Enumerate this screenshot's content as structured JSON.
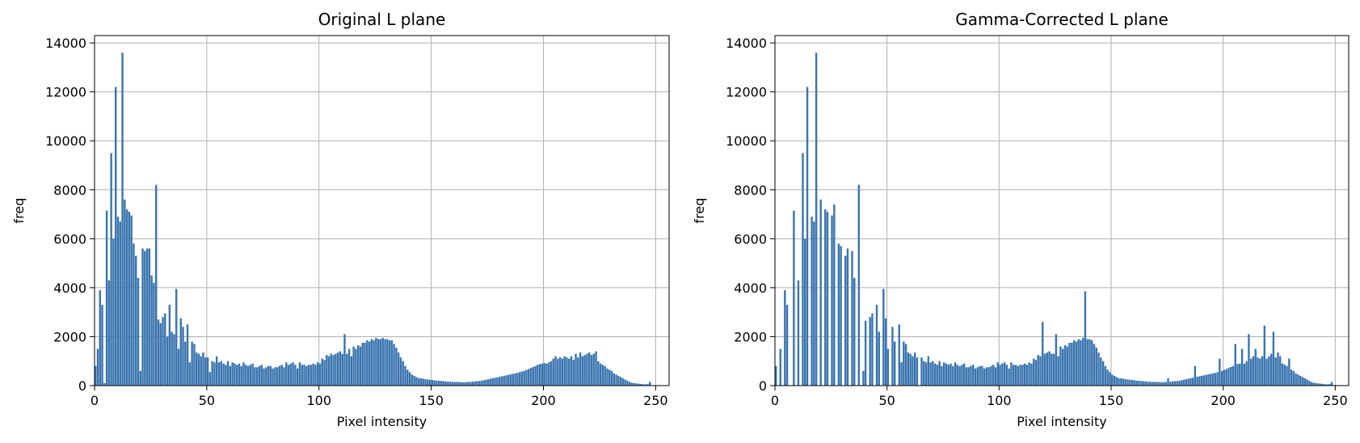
{
  "chart_data": [
    {
      "type": "bar",
      "title": "Original L plane",
      "xlabel": "Pixel intensity",
      "ylabel": "freq",
      "xlim": [
        0,
        256
      ],
      "ylim": [
        0,
        14300
      ],
      "xticks": [
        0,
        50,
        100,
        150,
        200,
        250
      ],
      "yticks": [
        0,
        2000,
        4000,
        6000,
        8000,
        10000,
        12000,
        14000
      ],
      "grid": true,
      "bar_color": "#3b75af",
      "x_start": 0,
      "bin_width": 1,
      "values": [
        800,
        1500,
        3900,
        3300,
        100,
        7150,
        4300,
        9500,
        6000,
        12200,
        6900,
        6700,
        13600,
        7600,
        7200,
        7100,
        6950,
        5800,
        5300,
        4400,
        600,
        5600,
        5500,
        5600,
        5600,
        4500,
        4200,
        8200,
        2700,
        2550,
        2800,
        2950,
        2000,
        3300,
        2200,
        2100,
        3950,
        1500,
        2750,
        2400,
        1800,
        2500,
        950,
        1800,
        1700,
        1350,
        1300,
        1200,
        1350,
        1150,
        1150,
        550,
        1000,
        950,
        1200,
        950,
        1000,
        900,
        850,
        1000,
        800,
        950,
        900,
        850,
        900,
        800,
        950,
        850,
        800,
        850,
        900,
        750,
        750,
        800,
        850,
        700,
        750,
        800,
        800,
        700,
        750,
        750,
        800,
        850,
        750,
        950,
        850,
        900,
        950,
        850,
        700,
        950,
        850,
        850,
        800,
        850,
        850,
        900,
        850,
        950,
        900,
        1100,
        1050,
        1250,
        1200,
        1300,
        1250,
        1300,
        1350,
        1400,
        1300,
        2100,
        1300,
        1500,
        1200,
        1600,
        1500,
        1650,
        1600,
        1750,
        1750,
        1850,
        1800,
        1900,
        1850,
        1950,
        1900,
        1900,
        1950,
        1900,
        1900,
        1850,
        1850,
        1700,
        1550,
        1350,
        1150,
        1000,
        800,
        650,
        550,
        450,
        400,
        350,
        300,
        300,
        280,
        260,
        250,
        240,
        230,
        220,
        200,
        200,
        190,
        180,
        170,
        160,
        160,
        150,
        150,
        150,
        150,
        140,
        140,
        140,
        150,
        150,
        160,
        170,
        180,
        190,
        200,
        220,
        240,
        260,
        280,
        300,
        320,
        340,
        360,
        380,
        400,
        420,
        440,
        460,
        480,
        500,
        520,
        550,
        580,
        600,
        640,
        680,
        720,
        760,
        800,
        850,
        880,
        900,
        920,
        900,
        950,
        1000,
        1100,
        1200,
        1100,
        1150,
        1100,
        1200,
        1150,
        1100,
        1200,
        1050,
        1300,
        1150,
        1350,
        1200,
        1250,
        1300,
        1350,
        1250,
        1300,
        1400,
        1000,
        900,
        850,
        800,
        700,
        650,
        600,
        500,
        450,
        400,
        350,
        300,
        250,
        200,
        150,
        120,
        100,
        90,
        80,
        70,
        60,
        50,
        60,
        150
      ]
    },
    {
      "type": "bar",
      "title": "Gamma-Corrected L plane",
      "xlabel": "Pixel intensity",
      "ylabel": "freq",
      "xlim": [
        0,
        256
      ],
      "ylim": [
        0,
        14300
      ],
      "xticks": [
        0,
        50,
        100,
        150,
        200,
        250
      ],
      "yticks": [
        0,
        2000,
        4000,
        6000,
        8000,
        10000,
        12000,
        14000
      ],
      "grid": true,
      "bar_color": "#3b75af",
      "x_start": 0,
      "bin_width": 1,
      "values": [
        800,
        0,
        1500,
        0,
        3900,
        3300,
        0,
        0,
        7150,
        0,
        4300,
        0,
        9500,
        6000,
        12200,
        0,
        6900,
        6700,
        13600,
        0,
        7600,
        0,
        7200,
        7100,
        0,
        6950,
        7400,
        0,
        5800,
        5700,
        0,
        5300,
        5600,
        0,
        5500,
        4400,
        0,
        8200,
        0,
        600,
        2650,
        0,
        2800,
        2950,
        0,
        3300,
        2200,
        0,
        3950,
        2750,
        1500,
        0,
        2400,
        1800,
        0,
        2500,
        950,
        1800,
        1700,
        1350,
        1300,
        1200,
        1350,
        1150,
        0,
        1150,
        1000,
        950,
        1200,
        950,
        1000,
        900,
        850,
        1000,
        800,
        950,
        900,
        850,
        900,
        800,
        950,
        850,
        800,
        850,
        900,
        750,
        750,
        800,
        850,
        700,
        750,
        800,
        800,
        700,
        750,
        750,
        800,
        850,
        750,
        950,
        850,
        900,
        950,
        850,
        700,
        950,
        850,
        850,
        800,
        850,
        850,
        900,
        850,
        950,
        900,
        1100,
        1050,
        1250,
        1200,
        2600,
        1300,
        1350,
        1400,
        1300,
        1300,
        2100,
        1200,
        1600,
        1500,
        1650,
        1600,
        1750,
        1750,
        1850,
        1800,
        1900,
        1850,
        1950,
        3850,
        1900,
        1900,
        1850,
        1700,
        1550,
        1350,
        1150,
        1000,
        800,
        650,
        550,
        450,
        400,
        350,
        300,
        300,
        280,
        260,
        250,
        240,
        230,
        220,
        200,
        200,
        190,
        180,
        170,
        160,
        160,
        150,
        150,
        150,
        150,
        140,
        140,
        150,
        300,
        160,
        170,
        180,
        190,
        200,
        220,
        240,
        260,
        280,
        300,
        320,
        800,
        360,
        380,
        400,
        420,
        440,
        460,
        480,
        500,
        520,
        550,
        1100,
        600,
        640,
        680,
        720,
        760,
        800,
        1700,
        880,
        900,
        1500,
        900,
        1000,
        2100,
        1100,
        1200,
        1500,
        1150,
        1100,
        1200,
        2450,
        1100,
        1200,
        1300,
        2200,
        1150,
        1350,
        1200,
        900,
        850,
        800,
        1100,
        650,
        600,
        500,
        450,
        400,
        350,
        300,
        250,
        200,
        150,
        120,
        100,
        90,
        80,
        70,
        60,
        50,
        60,
        150
      ]
    }
  ]
}
